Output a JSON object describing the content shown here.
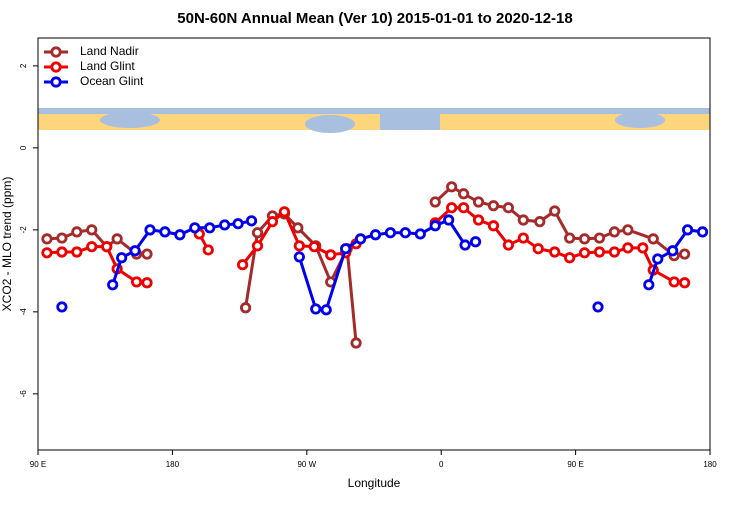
{
  "chart_data": {
    "type": "line",
    "title": "50N-60N Annual Mean (Ver 10)   2015-01-01 to 2020-12-18",
    "x_label": "Longitude",
    "y_label": "XCO2 - MLO trend (ppm)",
    "xlim": [
      90,
      540
    ],
    "ylim": [
      -7.37,
      2.68
    ],
    "xticks": [
      {
        "value": 90,
        "label": "90 E"
      },
      180,
      {
        "value": 270,
        "label": "90 W"
      },
      {
        "value": 360,
        "label": "0"
      },
      {
        "value": 450,
        "label": "90 E"
      },
      {
        "value": 540,
        "label": "180"
      }
    ],
    "yticks": [
      2,
      0,
      -2,
      -4,
      -6
    ],
    "legend": "top-left",
    "series": [
      {
        "name": "Land Nadir",
        "color": "#a52a2a",
        "x": [
          96,
          106,
          116,
          126,
          136,
          143,
          156,
          163,
          null,
          229,
          237,
          247,
          255,
          264,
          276,
          286,
          297,
          303,
          null,
          356,
          367,
          375,
          385,
          395,
          405,
          415,
          426,
          436,
          446,
          456,
          466,
          476,
          485,
          502,
          516,
          523
        ],
        "values": [
          -2.22,
          -2.2,
          -2.05,
          -2.0,
          -2.41,
          -2.22,
          -2.59,
          -2.59,
          null,
          -3.9,
          -2.07,
          -1.66,
          -1.61,
          -1.95,
          -2.39,
          -3.27,
          -2.46,
          -4.76,
          null,
          -1.32,
          -0.95,
          -1.12,
          -1.32,
          -1.41,
          -1.46,
          -1.76,
          -1.8,
          -1.54,
          -2.2,
          -2.22,
          -2.2,
          -2.05,
          -2.0,
          -2.22,
          -2.63,
          -2.59
        ]
      },
      {
        "name": "Land Glint",
        "color": "#ee0000",
        "x": [
          96,
          106,
          116,
          126,
          136,
          143,
          156,
          163,
          null,
          198,
          204,
          null,
          227,
          237,
          247,
          255,
          265,
          275,
          286,
          296,
          303,
          null,
          356,
          367,
          375,
          385,
          395,
          405,
          415,
          425,
          436,
          446,
          456,
          466,
          476,
          485,
          495,
          502,
          516,
          523
        ],
        "values": [
          -2.56,
          -2.54,
          -2.54,
          -2.41,
          -2.41,
          -2.95,
          -3.27,
          -3.29,
          null,
          -2.1,
          -2.49,
          null,
          -2.85,
          -2.39,
          -1.8,
          -1.56,
          -2.39,
          -2.41,
          -2.61,
          -2.56,
          -2.34,
          null,
          -1.83,
          -1.46,
          -1.46,
          -1.76,
          -1.9,
          -2.37,
          -2.2,
          -2.46,
          -2.54,
          -2.68,
          -2.56,
          -2.54,
          -2.54,
          -2.44,
          -2.44,
          -2.98,
          -3.27,
          -3.29
        ]
      },
      {
        "name": "Ocean Glint",
        "color": "#0000ee",
        "x": [
          106,
          null,
          140,
          146,
          155,
          165,
          175,
          185,
          195,
          205,
          215,
          224,
          233,
          null,
          265,
          276,
          283,
          296,
          306,
          316,
          326,
          336,
          346,
          356,
          365,
          376,
          383,
          null,
          465,
          null,
          499,
          505,
          515,
          525,
          535
        ],
        "values": [
          -3.88,
          null,
          -3.34,
          -2.68,
          -2.51,
          -2.0,
          -2.05,
          -2.12,
          -1.95,
          -1.95,
          -1.88,
          -1.85,
          -1.78,
          null,
          -2.66,
          -3.93,
          -3.95,
          -2.46,
          -2.22,
          -2.12,
          -2.07,
          -2.07,
          -2.1,
          -1.9,
          -1.76,
          -2.37,
          -2.29,
          null,
          -3.88,
          null,
          -3.34,
          -2.71,
          -2.51,
          -2.0,
          -2.05
        ]
      }
    ]
  }
}
